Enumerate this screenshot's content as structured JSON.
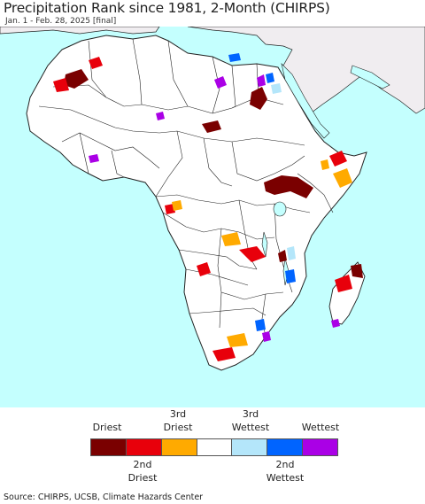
{
  "title": "Precipitation Rank since 1981, 2-Month (CHIRPS)",
  "subtitle": "Jan. 1 - Feb. 28, 2025 [final]",
  "legend": {
    "top_labels": [
      "Driest",
      "3rd\nDriest",
      "3rd\nWettest",
      "Wettest"
    ],
    "bottom_labels": [
      "2nd\nDriest",
      "2nd\nWettest"
    ],
    "classes": [
      {
        "name": "Driest",
        "color": "#7a0000"
      },
      {
        "name": "2nd Driest",
        "color": "#e8000b"
      },
      {
        "name": "3rd Driest",
        "color": "#ffaa00"
      },
      {
        "name": "Normal",
        "color": "#ffffff"
      },
      {
        "name": "3rd Wettest",
        "color": "#b4e6fa"
      },
      {
        "name": "2nd Wettest",
        "color": "#0064ff"
      },
      {
        "name": "Wettest",
        "color": "#aa00e6"
      }
    ]
  },
  "source": "Source: CHIRPS, UCSB, Climate Hazards Center",
  "colors": {
    "ocean": "#c4fffe",
    "land": "#ffffff",
    "no_data": "#f0edf0",
    "border": "#222222"
  }
}
